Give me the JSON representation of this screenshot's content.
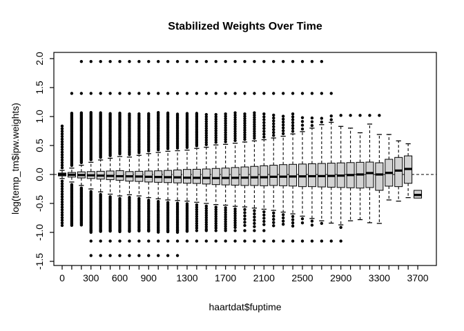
{
  "chart_data": {
    "type": "boxplot",
    "title": "Stabilized Weights Over Time",
    "xlabel": "haartdat$fuptime",
    "ylabel": "log(temp_tm$ipw.weights)",
    "x_tick_count": 38,
    "x_values_start": 0,
    "x_values_step": 100,
    "x_ticks_labeled": [
      "0",
      "300",
      "600",
      "900",
      "1300",
      "1700",
      "2100",
      "2500",
      "2900",
      "3300",
      "3700"
    ],
    "x_labeled_positions": [
      0,
      3,
      6,
      9,
      13,
      17,
      21,
      25,
      29,
      33,
      37
    ],
    "y_ticks": [
      "-1.5",
      "-1.0",
      "-0.5",
      "0.0",
      "0.5",
      "1.0",
      "1.5",
      "2.0"
    ],
    "y_tick_values": [
      -1.5,
      -1.0,
      -0.5,
      0.0,
      0.5,
      1.0,
      1.5,
      2.0
    ],
    "ylim": [
      -1.6,
      2.1
    ],
    "reference_line_y": 0,
    "reference_line_style": "dashed",
    "grid": false,
    "legend": "none",
    "box_fill": "#d3d3d3",
    "stroke_color": "#000000",
    "background": "#ffffff",
    "boxes": [
      {
        "x": 0,
        "q1": -0.025,
        "med": 0.0,
        "q3": 0.025,
        "lo": -0.07,
        "hi": 0.07,
        "oh": 0.85,
        "sh": 0.045,
        "ol": -0.88,
        "sl": 0.045
      },
      {
        "x": 100,
        "q1": -0.045,
        "med": -0.005,
        "q3": 0.035,
        "lo": -0.13,
        "hi": 0.11,
        "oh": 1.07,
        "sh": 0.022,
        "ol": -0.88,
        "sl": 0.022
      },
      {
        "x": 200,
        "q1": -0.06,
        "med": -0.01,
        "q3": 0.045,
        "lo": -0.19,
        "hi": 0.16,
        "oh": 1.07,
        "sh": 0.022,
        "ol": -0.88,
        "sl": 0.022
      },
      {
        "x": 300,
        "q1": -0.07,
        "med": -0.015,
        "q3": 0.05,
        "lo": -0.25,
        "hi": 0.21,
        "oh": 1.07,
        "sh": 0.022,
        "ol": -1.0,
        "sl": 0.022
      },
      {
        "x": 400,
        "q1": -0.08,
        "med": -0.02,
        "q3": 0.055,
        "lo": -0.3,
        "hi": 0.25,
        "oh": 1.07,
        "sh": 0.022,
        "ol": -1.0,
        "sl": 0.022
      },
      {
        "x": 500,
        "q1": -0.09,
        "med": -0.025,
        "q3": 0.06,
        "lo": -0.34,
        "hi": 0.28,
        "oh": 1.07,
        "sh": 0.022,
        "ol": -1.0,
        "sl": 0.022
      },
      {
        "x": 600,
        "q1": -0.1,
        "med": -0.03,
        "q3": 0.065,
        "lo": -0.37,
        "hi": 0.31,
        "oh": 1.07,
        "sh": 0.022,
        "ol": -1.0,
        "sl": 0.022
      },
      {
        "x": 700,
        "q1": -0.115,
        "med": -0.032,
        "q3": 0.05,
        "lo": -0.35,
        "hi": 0.3,
        "oh": 1.07,
        "sh": 0.028,
        "ol": -1.0,
        "sl": 0.028
      },
      {
        "x": 800,
        "q1": -0.12,
        "med": -0.035,
        "q3": 0.055,
        "lo": -0.37,
        "hi": 0.33,
        "oh": 1.07,
        "sh": 0.028,
        "ol": -1.0,
        "sl": 0.028
      },
      {
        "x": 900,
        "q1": -0.13,
        "med": -0.04,
        "q3": 0.06,
        "lo": -0.4,
        "hi": 0.36,
        "oh": 1.07,
        "sh": 0.028,
        "ol": -1.0,
        "sl": 0.028
      },
      {
        "x": 1000,
        "q1": -0.135,
        "med": -0.044,
        "q3": 0.063,
        "lo": -0.42,
        "hi": 0.38,
        "oh": 1.07,
        "sh": 0.028,
        "ol": -1.0,
        "sl": 0.028
      },
      {
        "x": 1100,
        "q1": -0.14,
        "med": -0.047,
        "q3": 0.07,
        "lo": -0.44,
        "hi": 0.4,
        "oh": 1.07,
        "sh": 0.028,
        "ol": -1.0,
        "sl": 0.028
      },
      {
        "x": 1200,
        "q1": -0.145,
        "med": -0.05,
        "q3": 0.078,
        "lo": -0.45,
        "hi": 0.41,
        "oh": 1.07,
        "sh": 0.028,
        "ol": -1.0,
        "sl": 0.028
      },
      {
        "x": 1300,
        "q1": -0.151,
        "med": -0.056,
        "q3": 0.087,
        "lo": -0.46,
        "hi": 0.42,
        "oh": 1.07,
        "sh": 0.028,
        "ol": -1.0,
        "sl": 0.028
      },
      {
        "x": 1400,
        "q1": -0.155,
        "med": -0.058,
        "q3": 0.09,
        "lo": -0.48,
        "hi": 0.45,
        "oh": 1.07,
        "sh": 0.028,
        "ol": -0.95,
        "sl": 0.04
      },
      {
        "x": 1500,
        "q1": -0.165,
        "med": -0.06,
        "q3": 0.095,
        "lo": -0.5,
        "hi": 0.47,
        "oh": 1.07,
        "sh": 0.04,
        "ol": -0.95,
        "sl": 0.04
      },
      {
        "x": 1600,
        "q1": -0.175,
        "med": -0.063,
        "q3": 0.104,
        "lo": -0.52,
        "hi": 0.51,
        "oh": 1.07,
        "sh": 0.04,
        "ol": -0.95,
        "sl": 0.04
      },
      {
        "x": 1700,
        "q1": -0.18,
        "med": -0.06,
        "q3": 0.11,
        "lo": -0.53,
        "hi": 0.52,
        "oh": 1.07,
        "sh": 0.04,
        "ol": -0.95,
        "sl": 0.04
      },
      {
        "x": 1800,
        "q1": -0.185,
        "med": -0.058,
        "q3": 0.12,
        "lo": -0.55,
        "hi": 0.54,
        "oh": 1.07,
        "sh": 0.04,
        "ol": -0.95,
        "sl": 0.04
      },
      {
        "x": 1900,
        "q1": -0.19,
        "med": -0.055,
        "q3": 0.13,
        "lo": -0.56,
        "hi": 0.56,
        "oh": 1.07,
        "sh": 0.04,
        "ol": -0.9,
        "sl": 0.055
      },
      {
        "x": 2000,
        "q1": -0.19,
        "med": -0.05,
        "q3": 0.14,
        "lo": -0.58,
        "hi": 0.58,
        "oh": 1.07,
        "sh": 0.04,
        "ol": -0.9,
        "sl": 0.055
      },
      {
        "x": 2100,
        "q1": -0.195,
        "med": -0.048,
        "q3": 0.15,
        "lo": -0.6,
        "hi": 0.6,
        "oh": 1.05,
        "sh": 0.05,
        "ol": -0.9,
        "sl": 0.055
      },
      {
        "x": 2200,
        "q1": -0.19,
        "med": -0.04,
        "q3": 0.16,
        "lo": -0.62,
        "hi": 0.63,
        "oh": 1.05,
        "sh": 0.05,
        "ol": -0.9,
        "sl": 0.055
      },
      {
        "x": 2300,
        "q1": -0.195,
        "med": -0.038,
        "q3": 0.17,
        "lo": -0.65,
        "hi": 0.66,
        "oh": 1.05,
        "sh": 0.05,
        "ol": -0.9,
        "sl": 0.055
      },
      {
        "x": 2400,
        "q1": -0.2,
        "med": -0.035,
        "q3": 0.175,
        "lo": -0.68,
        "hi": 0.7,
        "oh": 1.05,
        "sh": 0.05,
        "ol": -0.9,
        "sl": 0.055
      },
      {
        "x": 2500,
        "q1": -0.21,
        "med": -0.033,
        "q3": 0.18,
        "lo": -0.72,
        "hi": 0.74,
        "oh": 1.02,
        "sh": 0.065,
        "ol": -0.88,
        "sl": 0.07
      },
      {
        "x": 2600,
        "q1": -0.21,
        "med": -0.03,
        "q3": 0.185,
        "lo": -0.76,
        "hi": 0.8,
        "oh": 1.02,
        "sh": 0.065,
        "ol": -0.88,
        "sl": 0.07
      },
      {
        "x": 2700,
        "q1": -0.215,
        "med": -0.028,
        "q3": 0.19,
        "lo": -0.8,
        "hi": 0.86,
        "oh": 1.02,
        "sh": 0.065,
        "ol": -0.88,
        "sl": 0.07
      },
      {
        "x": 2800,
        "q1": -0.22,
        "med": -0.025,
        "q3": 0.195,
        "lo": -0.84,
        "hi": 0.9,
        "oh": 1.02,
        "sh": 0.065,
        "ol": -0.88,
        "sl": 0.07
      },
      {
        "x": 2900,
        "q1": -0.225,
        "med": -0.02,
        "q3": 0.2,
        "lo": -0.87,
        "hi": 0.83,
        "ol": -0.95,
        "sl": 0.07
      },
      {
        "x": 3000,
        "q1": -0.23,
        "med": -0.01,
        "q3": 0.205,
        "lo": -0.8,
        "hi": 0.8
      },
      {
        "x": 3100,
        "q1": -0.235,
        "med": 0.0,
        "q3": 0.21,
        "lo": -0.78,
        "hi": 0.72
      },
      {
        "x": 3200,
        "q1": -0.226,
        "med": 0.024,
        "q3": 0.214,
        "lo": -0.833,
        "hi": 0.87
      },
      {
        "x": 3300,
        "q1": -0.274,
        "med": 0.0,
        "q3": 0.202,
        "lo": -0.845,
        "hi": 0.69
      },
      {
        "x": 3400,
        "q1": -0.202,
        "med": 0.027,
        "q3": 0.262,
        "lo": -0.44,
        "hi": 0.69
      },
      {
        "x": 3500,
        "q1": -0.21,
        "med": 0.067,
        "q3": 0.294,
        "lo": -0.46,
        "hi": 0.58
      },
      {
        "x": 3600,
        "q1": -0.153,
        "med": 0.095,
        "q3": 0.321,
        "lo": -0.4,
        "hi": 0.53
      },
      {
        "x": 3700,
        "q1": -0.408,
        "med": -0.354,
        "q3": -0.274,
        "lo": -0.408,
        "hi": -0.274
      }
    ],
    "outlier_rows": [
      {
        "v": 1.95,
        "from": 2,
        "to": 27
      },
      {
        "v": 1.4,
        "from": 1,
        "to": 28
      },
      {
        "v": 1.02,
        "from": 29,
        "to": 33
      },
      {
        "v": -0.97,
        "from": 3,
        "to": 21
      },
      {
        "v": -1.15,
        "from": 3,
        "to": 29
      },
      {
        "v": -1.4,
        "from": 3,
        "to": 12
      }
    ]
  }
}
